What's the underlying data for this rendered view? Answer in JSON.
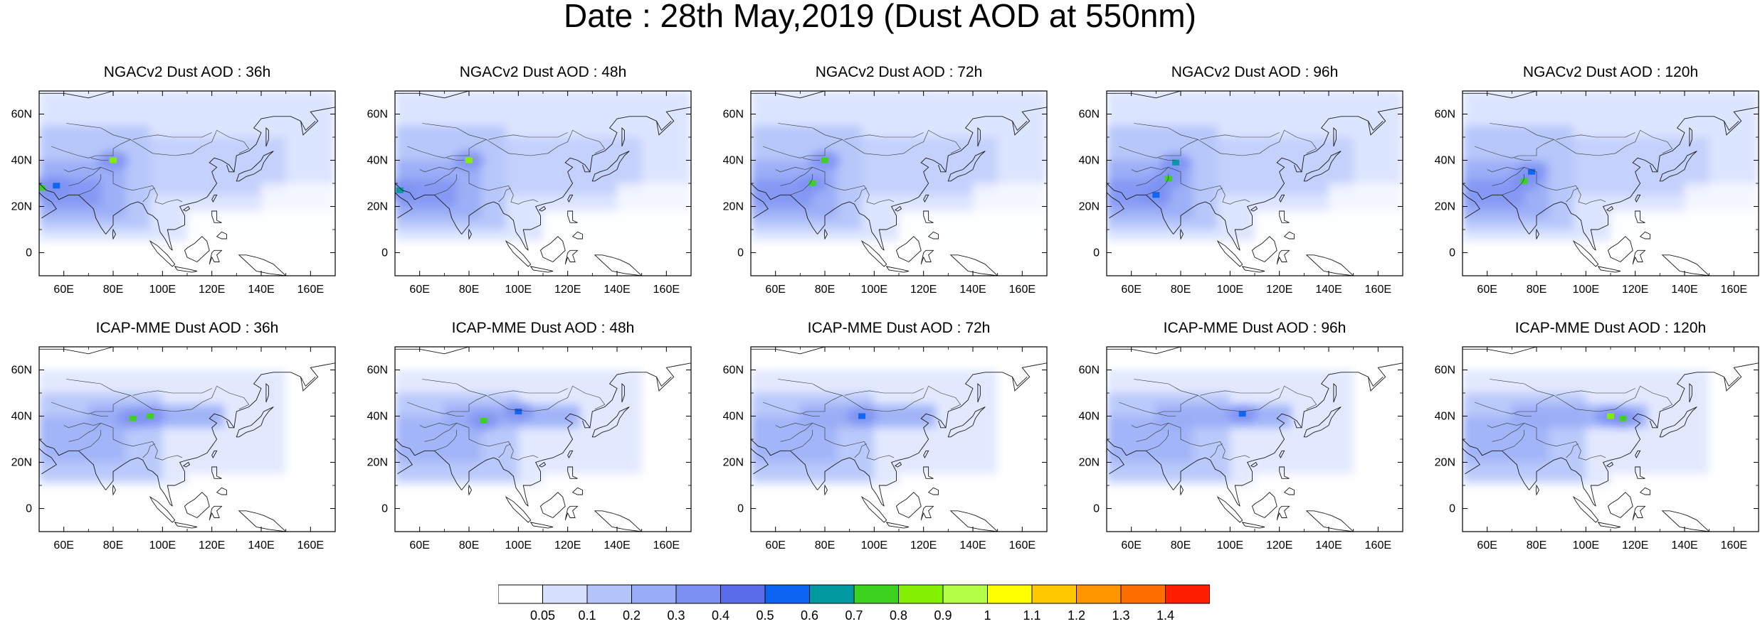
{
  "title": "Date : 28th May,2019 (Dust AOD at 550nm)",
  "axes": {
    "x_ticks": [
      "60E",
      "80E",
      "100E",
      "120E",
      "140E",
      "160E"
    ],
    "y_ticks": [
      "60N",
      "40N",
      "20N",
      "0"
    ],
    "lon_range": [
      50,
      170
    ],
    "lat_range": [
      -10,
      70
    ]
  },
  "panels": [
    {
      "id": "ngac-36",
      "title": "NGACv2 Dust AOD : 36h",
      "row": 0,
      "col": 0,
      "model": "ngac",
      "hotspots": [
        {
          "lon": 80,
          "lat": 40,
          "level": 0.8
        },
        {
          "lon": 51,
          "lat": 28,
          "level": 0.7
        },
        {
          "lon": 57,
          "lat": 29,
          "level": 0.55
        }
      ]
    },
    {
      "id": "ngac-48",
      "title": "NGACv2 Dust AOD : 48h",
      "row": 0,
      "col": 1,
      "model": "ngac",
      "hotspots": [
        {
          "lon": 80,
          "lat": 40,
          "level": 0.85
        },
        {
          "lon": 52,
          "lat": 27,
          "level": 0.6
        }
      ]
    },
    {
      "id": "ngac-72",
      "title": "NGACv2 Dust AOD : 72h",
      "row": 0,
      "col": 2,
      "model": "ngac",
      "hotspots": [
        {
          "lon": 80,
          "lat": 40,
          "level": 0.7
        },
        {
          "lon": 75,
          "lat": 30,
          "level": 0.75
        }
      ]
    },
    {
      "id": "ngac-96",
      "title": "NGACv2 Dust AOD : 96h",
      "row": 0,
      "col": 3,
      "model": "ngac",
      "hotspots": [
        {
          "lon": 75,
          "lat": 32,
          "level": 0.75
        },
        {
          "lon": 78,
          "lat": 39,
          "level": 0.6
        },
        {
          "lon": 70,
          "lat": 25,
          "level": 0.5
        }
      ]
    },
    {
      "id": "ngac-120",
      "title": "NGACv2 Dust AOD : 120h",
      "row": 0,
      "col": 4,
      "model": "ngac",
      "hotspots": [
        {
          "lon": 75,
          "lat": 31,
          "level": 0.7
        },
        {
          "lon": 78,
          "lat": 35,
          "level": 0.55
        }
      ]
    },
    {
      "id": "icap-36",
      "title": "ICAP-MME Dust AOD : 36h",
      "row": 1,
      "col": 0,
      "model": "icap",
      "hotspots": [
        {
          "lon": 88,
          "lat": 39,
          "level": 0.75
        },
        {
          "lon": 95,
          "lat": 40,
          "level": 0.7
        }
      ]
    },
    {
      "id": "icap-48",
      "title": "ICAP-MME Dust AOD : 48h",
      "row": 1,
      "col": 1,
      "model": "icap",
      "hotspots": [
        {
          "lon": 86,
          "lat": 38,
          "level": 0.7
        },
        {
          "lon": 100,
          "lat": 42,
          "level": 0.55
        }
      ]
    },
    {
      "id": "icap-72",
      "title": "ICAP-MME Dust AOD : 72h",
      "row": 1,
      "col": 2,
      "model": "icap",
      "hotspots": [
        {
          "lon": 95,
          "lat": 40,
          "level": 0.5
        }
      ]
    },
    {
      "id": "icap-96",
      "title": "ICAP-MME Dust AOD : 96h",
      "row": 1,
      "col": 3,
      "model": "icap",
      "hotspots": [
        {
          "lon": 105,
          "lat": 41,
          "level": 0.5
        }
      ]
    },
    {
      "id": "icap-120",
      "title": "ICAP-MME Dust AOD : 120h",
      "row": 1,
      "col": 4,
      "model": "icap",
      "hotspots": [
        {
          "lon": 110,
          "lat": 40,
          "level": 0.8
        },
        {
          "lon": 115,
          "lat": 39,
          "level": 0.75
        }
      ]
    }
  ],
  "colorbar": {
    "labels": [
      "0.05",
      "0.1",
      "0.2",
      "0.3",
      "0.4",
      "0.5",
      "0.6",
      "0.7",
      "0.8",
      "0.9",
      "1",
      "1.1",
      "1.2",
      "1.3",
      "1.4"
    ],
    "colors": [
      "#ffffff",
      "#d6e0ff",
      "#b4c4fa",
      "#98acf7",
      "#7c90f2",
      "#5a6cea",
      "#0a64f0",
      "#009aa0",
      "#3cd21e",
      "#82f000",
      "#b4ff46",
      "#ffff00",
      "#ffc800",
      "#ff9600",
      "#ff6e00",
      "#ff1e00"
    ]
  }
}
